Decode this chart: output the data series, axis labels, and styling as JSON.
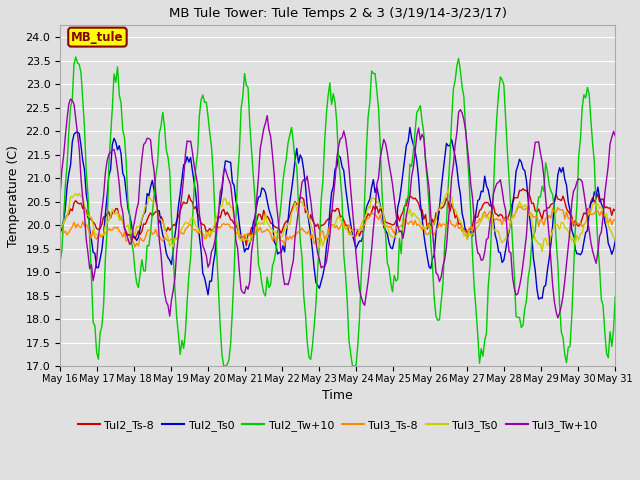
{
  "title": "MB Tule Tower: Tule Temps 2 & 3 (3/19/14-3/23/17)",
  "xlabel": "Time",
  "ylabel": "Temperature (C)",
  "ylim": [
    17.0,
    24.25
  ],
  "yticks": [
    17.0,
    17.5,
    18.0,
    18.5,
    19.0,
    19.5,
    20.0,
    20.5,
    21.0,
    21.5,
    22.0,
    22.5,
    23.0,
    23.5,
    24.0
  ],
  "xtick_labels": [
    "May 16",
    "May 17",
    "May 18",
    "May 19",
    "May 20",
    "May 21",
    "May 22",
    "May 23",
    "May 24",
    "May 25",
    "May 26",
    "May 27",
    "May 28",
    "May 29",
    "May 30",
    "May 31"
  ],
  "background_color": "#e0e0e0",
  "plot_bg_color": "#e0e0e0",
  "grid_color": "#ffffff",
  "legend_label": "MB_tule",
  "legend_bg": "#ffff00",
  "legend_edge": "#8b0000",
  "series_colors": {
    "Tul2_Ts-8": "#cc0000",
    "Tul2_Ts0": "#0000cc",
    "Tul2_Tw+10": "#00cc00",
    "Tul3_Ts-8": "#ff8800",
    "Tul3_Ts0": "#cccc00",
    "Tul3_Tw+10": "#9900aa"
  },
  "n_points": 320
}
